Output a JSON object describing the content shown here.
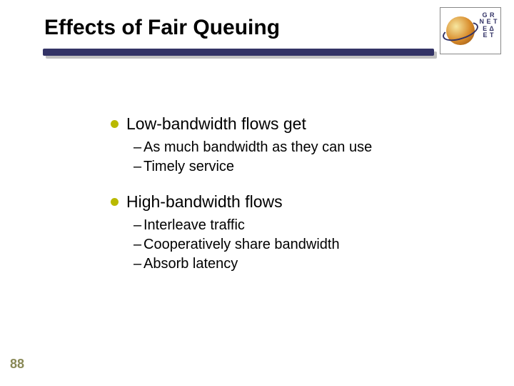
{
  "title": "Effects of Fair Queuing",
  "logo": {
    "line1": "G R",
    "line2": "N E T",
    "line3": "Ε Δ",
    "line4": "Ε Τ"
  },
  "bullets": [
    {
      "text": "Low-bandwidth flows get",
      "sub": [
        "As much bandwidth as they can use",
        "Timely service"
      ]
    },
    {
      "text": "High-bandwidth flows",
      "sub": [
        "Interleave traffic",
        "Cooperatively share bandwidth",
        "Absorb latency"
      ]
    }
  ],
  "page_number": "88",
  "colors": {
    "underline": "#333366",
    "underline_shadow": "#c0c0c0",
    "bullet_dot": "#b9b900",
    "page_num": "#888855"
  }
}
